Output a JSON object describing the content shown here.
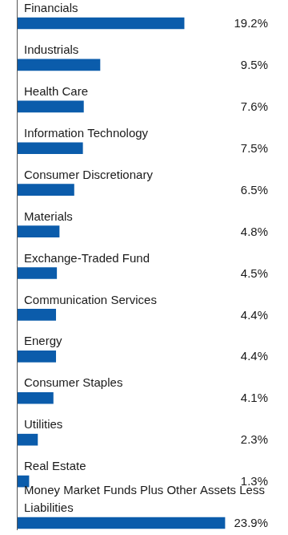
{
  "chart_data": {
    "type": "bar",
    "orientation": "horizontal",
    "categories": [
      "Financials",
      "Industrials",
      "Health Care",
      "Information Technology",
      "Consumer Discretionary",
      "Materials",
      "Exchange-Traded Fund",
      "Communication Services",
      "Energy",
      "Consumer Staples",
      "Utilities",
      "Real Estate",
      "Money Market Funds Plus Other Assets Less Liabilities"
    ],
    "values": [
      19.2,
      9.5,
      7.6,
      7.5,
      6.5,
      4.8,
      4.5,
      4.4,
      4.4,
      4.1,
      2.3,
      1.3,
      23.9
    ],
    "value_labels": [
      "19.2%",
      "9.5%",
      "7.6%",
      "7.5%",
      "6.5%",
      "4.8%",
      "4.5%",
      "4.4%",
      "4.4%",
      "4.1%",
      "2.3%",
      "1.3%",
      "23.9%"
    ],
    "color": "#0b5cab",
    "xlim": [
      0,
      25
    ],
    "grid": false,
    "data_labels": true
  }
}
